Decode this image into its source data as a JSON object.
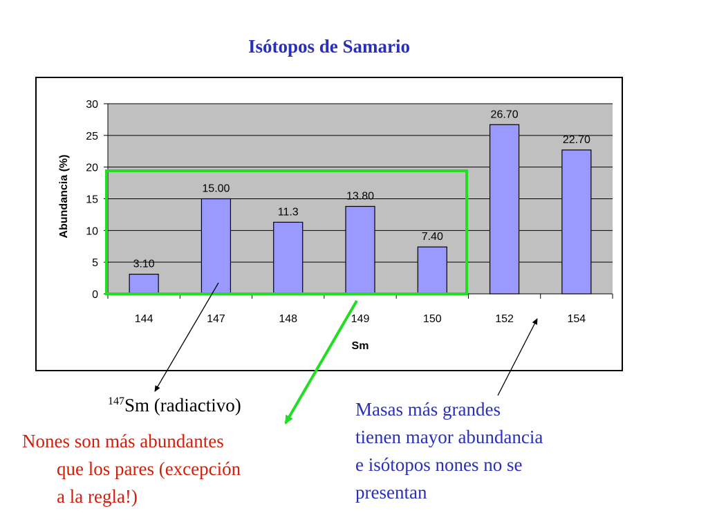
{
  "title": "Isótopos de Samario",
  "chart_data": {
    "type": "bar",
    "categories": [
      "144",
      "147",
      "148",
      "149",
      "150",
      "152",
      "154"
    ],
    "values": [
      3.1,
      15.0,
      11.3,
      13.8,
      7.4,
      26.7,
      22.7
    ],
    "data_labels": [
      "3.10",
      "15.00",
      "11.3",
      "13.80",
      "7.40",
      "26.70",
      "22.70"
    ],
    "xlabel": "Sm",
    "ylabel": "Abundancia (%)",
    "ylim": [
      0,
      30
    ],
    "yticks": [
      "0",
      "5",
      "10",
      "15",
      "20",
      "25",
      "30"
    ],
    "grid": true,
    "colors": {
      "bar": "#9999ff",
      "plot_bg": "#c0c0c0",
      "highlight_box": "#22dd22"
    }
  },
  "annotations": {
    "sm147": {
      "superscript": "147",
      "text": "Sm (radiactivo)"
    },
    "nones": {
      "lines": [
        "Nones son más abundantes",
        "que los pares (excepción",
        "a la regla!)"
      ],
      "color": "#d11f0c"
    },
    "masas": {
      "lines": [
        "Masas más grandes",
        "tienen mayor abundancia",
        "e isótopos nones no se",
        "presentan"
      ],
      "color": "#2a2fb8"
    }
  }
}
